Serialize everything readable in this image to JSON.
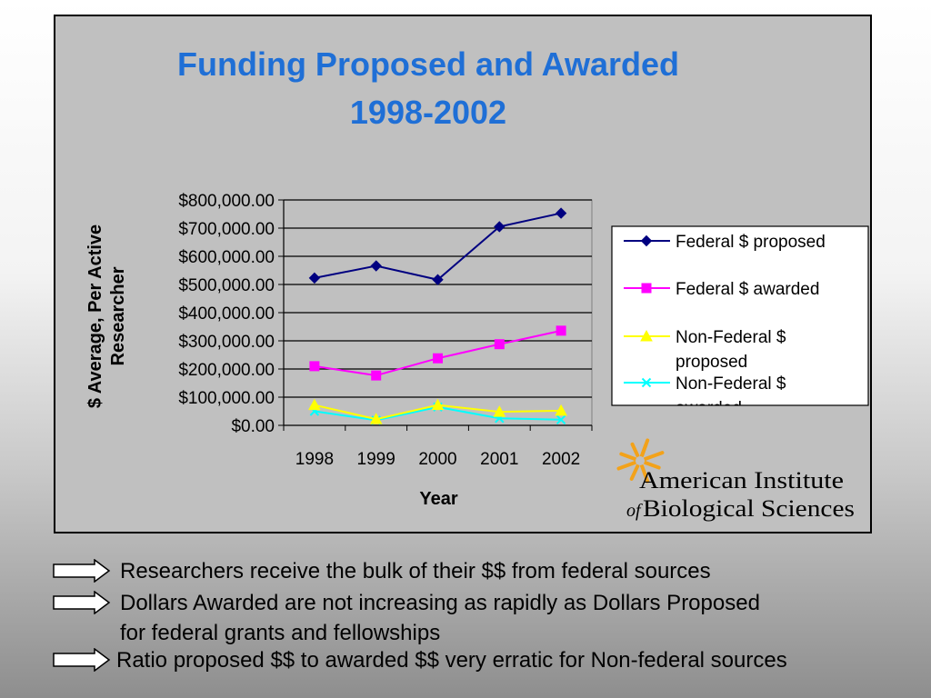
{
  "chart_data": {
    "type": "line",
    "title": "Funding Proposed and Awarded 1998-2002",
    "title_lines": [
      "Funding Proposed and Awarded",
      "1998-2002"
    ],
    "xlabel": "Year",
    "ylabel_lines": [
      "$ Average, Per Active",
      "Researcher"
    ],
    "categories": [
      "1998",
      "1999",
      "2000",
      "2001",
      "2002"
    ],
    "ylim": [
      0,
      800000
    ],
    "y_ticks": [
      "$0.00",
      "$100,000.00",
      "$200,000.00",
      "$300,000.00",
      "$400,000.00",
      "$500,000.00",
      "$600,000.00",
      "$700,000.00",
      "$800,000.00"
    ],
    "grid": true,
    "legend_position": "right",
    "series": [
      {
        "name": "Federal $ proposed",
        "values": [
          523000,
          566000,
          517000,
          705000,
          753000
        ],
        "color": "#000080",
        "marker": "diamond"
      },
      {
        "name": "Federal $ awarded",
        "values": [
          210000,
          177000,
          238000,
          288000,
          336000
        ],
        "color": "#ff00ff",
        "marker": "square"
      },
      {
        "name": "Non-Federal $ proposed",
        "values": [
          72000,
          22000,
          72000,
          48000,
          52000
        ],
        "color": "#ffff00",
        "marker": "triangle"
      },
      {
        "name": "Non-Federal $ awarded",
        "values": [
          50000,
          18000,
          65000,
          25000,
          20000
        ],
        "color": "#00ffff",
        "marker": "x"
      }
    ]
  },
  "logo": {
    "line1": "American Institute",
    "line2_prefix": "of",
    "line2": "Biological Sciences",
    "sun_color": "#f3a21a"
  },
  "bullets": [
    {
      "lines": [
        "Researchers receive the bulk of their $$ from federal sources"
      ]
    },
    {
      "lines": [
        "Dollars Awarded are not increasing as rapidly as Dollars Proposed",
        "for federal grants and fellowships"
      ]
    },
    {
      "lines": [
        "Ratio proposed $$ to awarded $$ very erratic for Non-federal sources"
      ]
    }
  ]
}
